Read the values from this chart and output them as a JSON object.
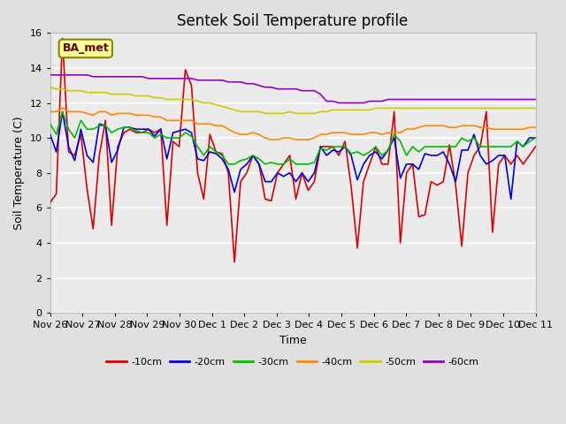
{
  "title": "Sentek Soil Temperature profile",
  "xlabel": "Time",
  "ylabel": "Soil Temperature (C)",
  "ylim": [
    0,
    16
  ],
  "yticks": [
    0,
    2,
    4,
    6,
    8,
    10,
    12,
    14,
    16
  ],
  "x_labels": [
    "Nov 26",
    "Nov 27",
    "Nov 28",
    "Nov 29",
    "Nov 30",
    "Dec 1",
    "Dec 2",
    "Dec 3",
    "Dec 4",
    "Dec 5",
    "Dec 6",
    "Dec 7",
    "Dec 8",
    "Dec 9",
    "Dec 10",
    "Dec 11"
  ],
  "station_label": "BA_met",
  "fig_bg": "#e0e0e0",
  "plot_bg": "#ebebeb",
  "colors": {
    "-10cm": "#dd0000",
    "-20cm": "#0000dd",
    "-30cm": "#00bb00",
    "-40cm": "#ff8800",
    "-50cm": "#cccc00",
    "-60cm": "#9900bb"
  },
  "figsize": [
    6.4,
    4.8
  ],
  "dpi": 100,
  "series": {
    "-10cm": [
      6.3,
      6.8,
      15.7,
      9.2,
      9.0,
      10.2,
      7.1,
      4.8,
      9.0,
      11.0,
      5.0,
      9.5,
      10.3,
      10.5,
      10.3,
      10.3,
      10.5,
      10.3,
      10.5,
      5.0,
      9.8,
      9.5,
      13.9,
      13.0,
      8.0,
      6.5,
      10.2,
      9.2,
      9.1,
      8.0,
      2.9,
      7.5,
      8.0,
      9.0,
      8.5,
      6.5,
      6.4,
      8.0,
      8.5,
      9.0,
      6.5,
      8.0,
      7.0,
      7.5,
      9.5,
      9.5,
      9.5,
      9.0,
      9.8,
      7.2,
      3.7,
      7.5,
      8.5,
      9.5,
      8.5,
      8.5,
      11.5,
      4.0,
      8.0,
      8.5,
      5.5,
      5.6,
      7.5,
      7.3,
      7.5,
      9.6,
      7.3,
      3.8,
      8.0,
      9.0,
      9.5,
      11.5,
      4.6,
      8.5,
      9.0,
      8.5,
      9.0,
      8.5,
      9.0,
      9.5
    ],
    "-20cm": [
      10.2,
      9.2,
      11.5,
      9.5,
      8.7,
      10.5,
      9.0,
      8.6,
      10.8,
      10.7,
      8.6,
      9.3,
      10.6,
      10.6,
      10.5,
      10.5,
      10.5,
      10.1,
      10.5,
      8.8,
      10.3,
      10.4,
      10.5,
      10.3,
      8.8,
      8.7,
      9.2,
      9.1,
      8.8,
      8.2,
      6.9,
      8.2,
      8.5,
      9.0,
      8.5,
      7.5,
      7.5,
      8.0,
      7.8,
      8.0,
      7.5,
      8.0,
      7.5,
      8.0,
      9.5,
      9.0,
      9.3,
      9.2,
      9.5,
      9.0,
      7.6,
      8.5,
      9.0,
      9.2,
      8.8,
      9.3,
      10.0,
      7.7,
      8.5,
      8.5,
      8.2,
      9.1,
      9.0,
      9.0,
      9.2,
      8.5,
      7.5,
      9.3,
      9.3,
      10.2,
      9.0,
      8.5,
      8.7,
      9.0,
      9.0,
      6.5,
      9.8,
      9.5,
      10.0,
      10.0
    ],
    "-30cm": [
      10.8,
      10.2,
      11.5,
      10.5,
      10.0,
      11.0,
      10.5,
      10.5,
      10.7,
      10.7,
      10.3,
      10.5,
      10.6,
      10.6,
      10.4,
      10.3,
      10.3,
      10.0,
      10.2,
      10.0,
      10.0,
      10.0,
      10.3,
      10.1,
      9.5,
      9.0,
      9.5,
      9.2,
      9.0,
      8.5,
      8.5,
      8.7,
      8.8,
      9.0,
      8.8,
      8.5,
      8.6,
      8.5,
      8.5,
      8.8,
      8.5,
      8.5,
      8.5,
      8.6,
      9.4,
      9.3,
      9.5,
      9.5,
      9.5,
      9.1,
      9.2,
      9.0,
      9.2,
      9.5,
      9.0,
      9.3,
      10.2,
      9.8,
      9.0,
      9.5,
      9.2,
      9.5,
      9.5,
      9.5,
      9.5,
      9.5,
      9.5,
      10.0,
      9.8,
      10.0,
      9.5,
      9.5,
      9.5,
      9.5,
      9.5,
      9.5,
      9.8,
      9.5,
      9.8,
      10.0
    ],
    "-40cm": [
      11.5,
      11.5,
      11.7,
      11.5,
      11.5,
      11.5,
      11.4,
      11.3,
      11.5,
      11.5,
      11.3,
      11.4,
      11.4,
      11.4,
      11.3,
      11.3,
      11.3,
      11.2,
      11.2,
      11.0,
      11.0,
      11.0,
      11.0,
      11.0,
      10.8,
      10.8,
      10.8,
      10.7,
      10.7,
      10.5,
      10.3,
      10.2,
      10.2,
      10.3,
      10.2,
      10.0,
      9.9,
      9.9,
      10.0,
      10.0,
      9.9,
      9.9,
      9.9,
      10.0,
      10.2,
      10.2,
      10.3,
      10.3,
      10.3,
      10.2,
      10.2,
      10.2,
      10.3,
      10.3,
      10.2,
      10.3,
      10.3,
      10.3,
      10.5,
      10.5,
      10.6,
      10.7,
      10.7,
      10.7,
      10.7,
      10.6,
      10.6,
      10.7,
      10.7,
      10.7,
      10.6,
      10.6,
      10.5,
      10.5,
      10.5,
      10.5,
      10.5,
      10.5,
      10.6,
      10.6
    ],
    "-50cm": [
      12.9,
      12.8,
      12.8,
      12.7,
      12.7,
      12.7,
      12.6,
      12.6,
      12.6,
      12.6,
      12.5,
      12.5,
      12.5,
      12.5,
      12.4,
      12.4,
      12.4,
      12.3,
      12.3,
      12.2,
      12.2,
      12.2,
      12.2,
      12.2,
      12.1,
      12.0,
      12.0,
      11.9,
      11.8,
      11.7,
      11.6,
      11.5,
      11.5,
      11.5,
      11.5,
      11.4,
      11.4,
      11.4,
      11.4,
      11.5,
      11.4,
      11.4,
      11.4,
      11.4,
      11.5,
      11.5,
      11.6,
      11.6,
      11.6,
      11.6,
      11.6,
      11.6,
      11.6,
      11.7,
      11.7,
      11.7,
      11.7,
      11.7,
      11.7,
      11.7,
      11.7,
      11.7,
      11.7,
      11.7,
      11.7,
      11.7,
      11.7,
      11.7,
      11.7,
      11.7,
      11.7,
      11.7,
      11.7,
      11.7,
      11.7,
      11.7,
      11.7,
      11.7,
      11.7,
      11.7
    ],
    "-60cm": [
      13.6,
      13.6,
      13.6,
      13.6,
      13.6,
      13.6,
      13.6,
      13.5,
      13.5,
      13.5,
      13.5,
      13.5,
      13.5,
      13.5,
      13.5,
      13.5,
      13.4,
      13.4,
      13.4,
      13.4,
      13.4,
      13.4,
      13.4,
      13.4,
      13.3,
      13.3,
      13.3,
      13.3,
      13.3,
      13.2,
      13.2,
      13.2,
      13.1,
      13.1,
      13.0,
      12.9,
      12.9,
      12.8,
      12.8,
      12.8,
      12.8,
      12.7,
      12.7,
      12.7,
      12.5,
      12.1,
      12.1,
      12.0,
      12.0,
      12.0,
      12.0,
      12.0,
      12.1,
      12.1,
      12.1,
      12.2,
      12.2,
      12.2,
      12.2,
      12.2,
      12.2,
      12.2,
      12.2,
      12.2,
      12.2,
      12.2,
      12.2,
      12.2,
      12.2,
      12.2,
      12.2,
      12.2,
      12.2,
      12.2,
      12.2,
      12.2,
      12.2,
      12.2,
      12.2,
      12.2
    ]
  }
}
